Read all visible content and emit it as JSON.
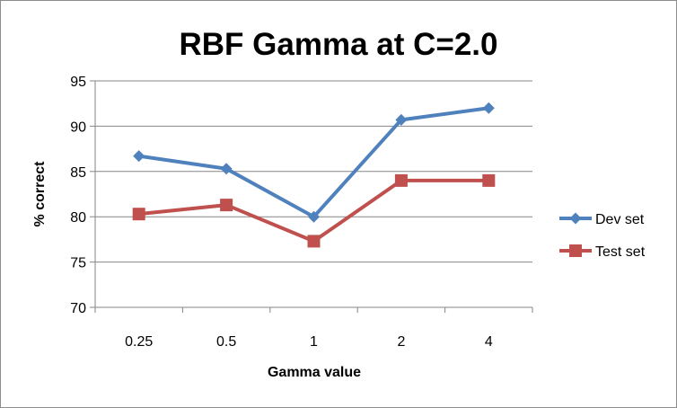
{
  "chart_data": {
    "type": "line",
    "title": "RBF Gamma at C=2.0",
    "xlabel": "Gamma value",
    "ylabel": "% correct",
    "categories": [
      "0.25",
      "0.5",
      "1",
      "2",
      "4"
    ],
    "ylim": [
      70,
      95
    ],
    "yticks": [
      70,
      75,
      80,
      85,
      90,
      95
    ],
    "grid": "horizontal",
    "legend_position": "right",
    "series": [
      {
        "name": "Dev set",
        "values": [
          86.7,
          85.3,
          80.0,
          90.7,
          92.0
        ],
        "color": "#4F81BD",
        "marker": "diamond"
      },
      {
        "name": "Test set",
        "values": [
          80.3,
          81.3,
          77.3,
          84.0,
          84.0
        ],
        "color": "#C0504D",
        "marker": "square"
      }
    ]
  }
}
